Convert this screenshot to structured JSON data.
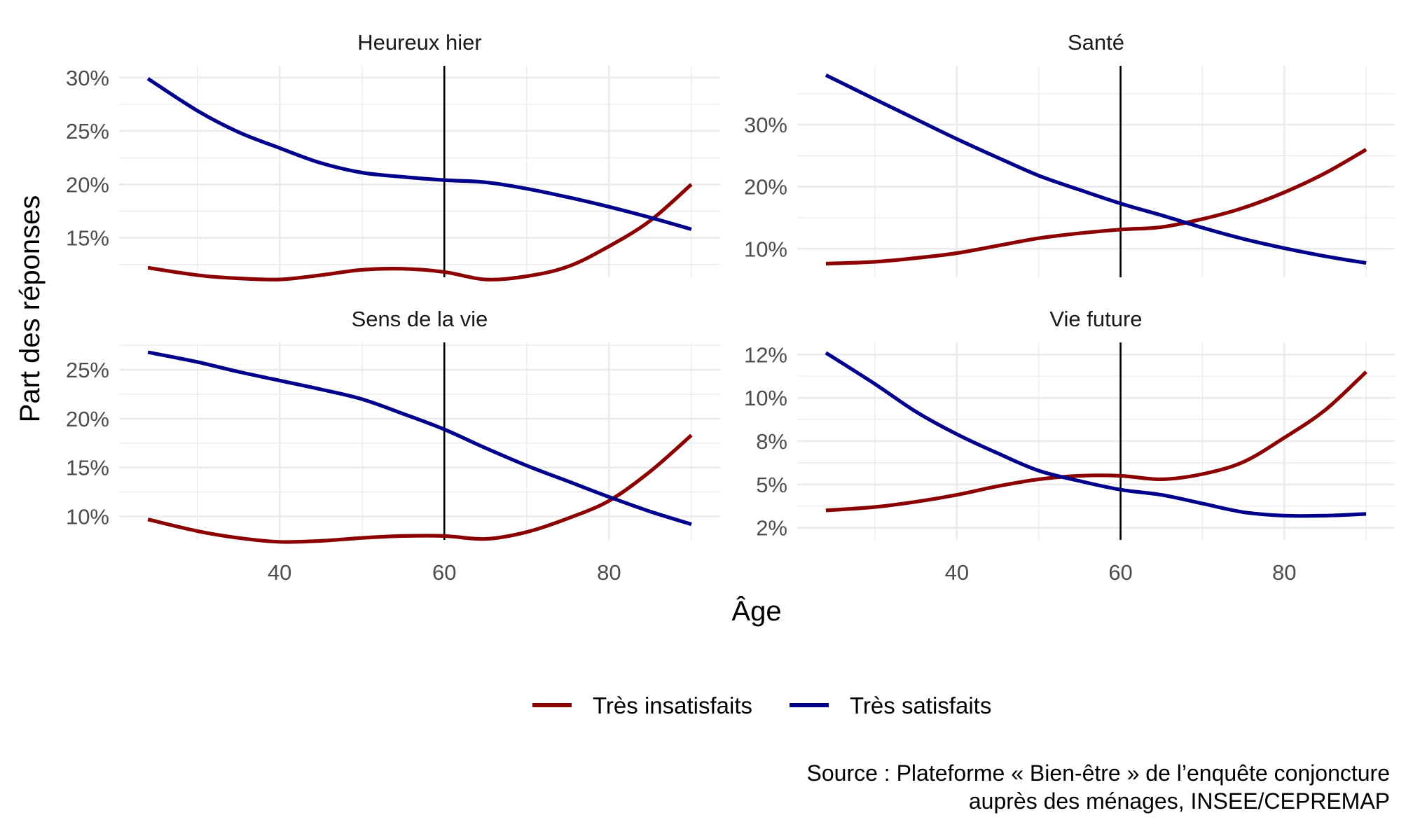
{
  "colors": {
    "insatisfaits": "#8B0000",
    "satisfaits": "#00008B",
    "grid": "#EBEBEB",
    "text": "#4D4D4D",
    "vline": "#000000"
  },
  "ylabel": "Part des réponses",
  "xlabel": "Âge",
  "legend": {
    "position": "bottom",
    "items": [
      {
        "key": "insatisfaits",
        "label": "Très insatisfaits"
      },
      {
        "key": "satisfaits",
        "label": "Très satisfaits"
      }
    ]
  },
  "source": {
    "line1": "Source : Plateforme « Bien-être » de l’enquête conjoncture",
    "line2": "auprès des ménages, INSEE/CEPREMAP"
  },
  "chart_data": [
    {
      "type": "line",
      "title": "Heureux hier",
      "xlim": [
        20.5,
        93.5
      ],
      "ylim": [
        11.3,
        31.1
      ],
      "xticks": [
        40,
        60,
        80
      ],
      "yticks": [
        15,
        20,
        25,
        30
      ],
      "ytick_labels": [
        "15%",
        "20%",
        "25%",
        "30%"
      ],
      "vline": 60,
      "series": [
        {
          "name": "Très insatisfaits",
          "key": "insatisfaits",
          "x": [
            24,
            30,
            35,
            40,
            45,
            50,
            55,
            60,
            65,
            70,
            75,
            80,
            85,
            90
          ],
          "y": [
            12.2,
            11.5,
            11.2,
            11.1,
            11.5,
            12.0,
            12.1,
            11.8,
            11.1,
            11.4,
            12.3,
            14.2,
            16.6,
            20.0
          ]
        },
        {
          "name": "Très satisfaits",
          "key": "satisfaits",
          "x": [
            24,
            30,
            35,
            40,
            45,
            50,
            55,
            60,
            65,
            70,
            75,
            80,
            85,
            90
          ],
          "y": [
            29.9,
            26.9,
            24.9,
            23.4,
            22.0,
            21.1,
            20.7,
            20.4,
            20.2,
            19.6,
            18.8,
            17.9,
            16.9,
            15.8
          ]
        }
      ]
    },
    {
      "type": "line",
      "title": "Santé",
      "xlim": [
        20.5,
        93.5
      ],
      "ylim": [
        5.4,
        39.5
      ],
      "xticks": [
        40,
        60,
        80
      ],
      "yticks": [
        10,
        20,
        30
      ],
      "ytick_labels": [
        "10%",
        "20%",
        "30%"
      ],
      "vline": 60,
      "series": [
        {
          "name": "Très insatisfaits",
          "key": "insatisfaits",
          "x": [
            24,
            30,
            35,
            40,
            45,
            50,
            55,
            60,
            65,
            70,
            75,
            80,
            85,
            90
          ],
          "y": [
            7.6,
            7.9,
            8.5,
            9.3,
            10.5,
            11.7,
            12.5,
            13.1,
            13.5,
            14.8,
            16.6,
            19.1,
            22.2,
            26.0
          ]
        },
        {
          "name": "Très satisfaits",
          "key": "satisfaits",
          "x": [
            24,
            30,
            35,
            40,
            45,
            50,
            55,
            60,
            65,
            70,
            75,
            80,
            85,
            90
          ],
          "y": [
            38.0,
            34.1,
            30.9,
            27.7,
            24.7,
            21.8,
            19.5,
            17.3,
            15.4,
            13.4,
            11.6,
            10.1,
            8.8,
            7.7
          ]
        }
      ]
    },
    {
      "type": "line",
      "title": "Sens de la vie",
      "xlim": [
        20.5,
        93.5
      ],
      "ylim": [
        7.6,
        27.8
      ],
      "xticks": [
        40,
        60,
        80
      ],
      "yticks": [
        10,
        15,
        20,
        25
      ],
      "ytick_labels": [
        "10%",
        "15%",
        "20%",
        "25%"
      ],
      "vline": 60,
      "series": [
        {
          "name": "Très insatisfaits",
          "key": "insatisfaits",
          "x": [
            24,
            30,
            35,
            40,
            45,
            50,
            55,
            60,
            65,
            70,
            75,
            80,
            85,
            90
          ],
          "y": [
            9.7,
            8.5,
            7.8,
            7.4,
            7.5,
            7.8,
            8.0,
            8.0,
            7.7,
            8.4,
            9.8,
            11.6,
            14.6,
            18.3
          ]
        },
        {
          "name": "Très satisfaits",
          "key": "satisfaits",
          "x": [
            24,
            30,
            35,
            40,
            45,
            50,
            55,
            60,
            65,
            70,
            75,
            80,
            85,
            90
          ],
          "y": [
            26.8,
            25.8,
            24.8,
            23.9,
            23.0,
            22.0,
            20.5,
            18.9,
            17.0,
            15.2,
            13.6,
            12.0,
            10.5,
            9.2
          ]
        }
      ]
    },
    {
      "type": "line",
      "title": "Vie future",
      "xlim": [
        20.5,
        93.5
      ],
      "ylim": [
        1.8,
        13.2
      ],
      "xticks": [
        40,
        60,
        80
      ],
      "yticks": [
        2.5,
        5,
        7.5,
        10,
        12.5
      ],
      "ytick_labels": [
        "2%",
        "5%",
        "8%",
        "10%",
        "12%"
      ],
      "vline": 60,
      "series": [
        {
          "name": "Très insatisfaits",
          "key": "insatisfaits",
          "x": [
            24,
            30,
            35,
            40,
            45,
            50,
            55,
            60,
            65,
            70,
            75,
            80,
            85,
            90
          ],
          "y": [
            3.5,
            3.7,
            4.0,
            4.4,
            4.9,
            5.3,
            5.5,
            5.5,
            5.3,
            5.6,
            6.3,
            7.7,
            9.3,
            11.5
          ]
        },
        {
          "name": "Très satisfaits",
          "key": "satisfaits",
          "x": [
            24,
            30,
            35,
            40,
            45,
            50,
            55,
            60,
            65,
            70,
            75,
            80,
            85,
            90
          ],
          "y": [
            12.6,
            10.8,
            9.2,
            7.9,
            6.8,
            5.8,
            5.2,
            4.7,
            4.4,
            3.9,
            3.4,
            3.2,
            3.2,
            3.3
          ]
        }
      ]
    }
  ]
}
